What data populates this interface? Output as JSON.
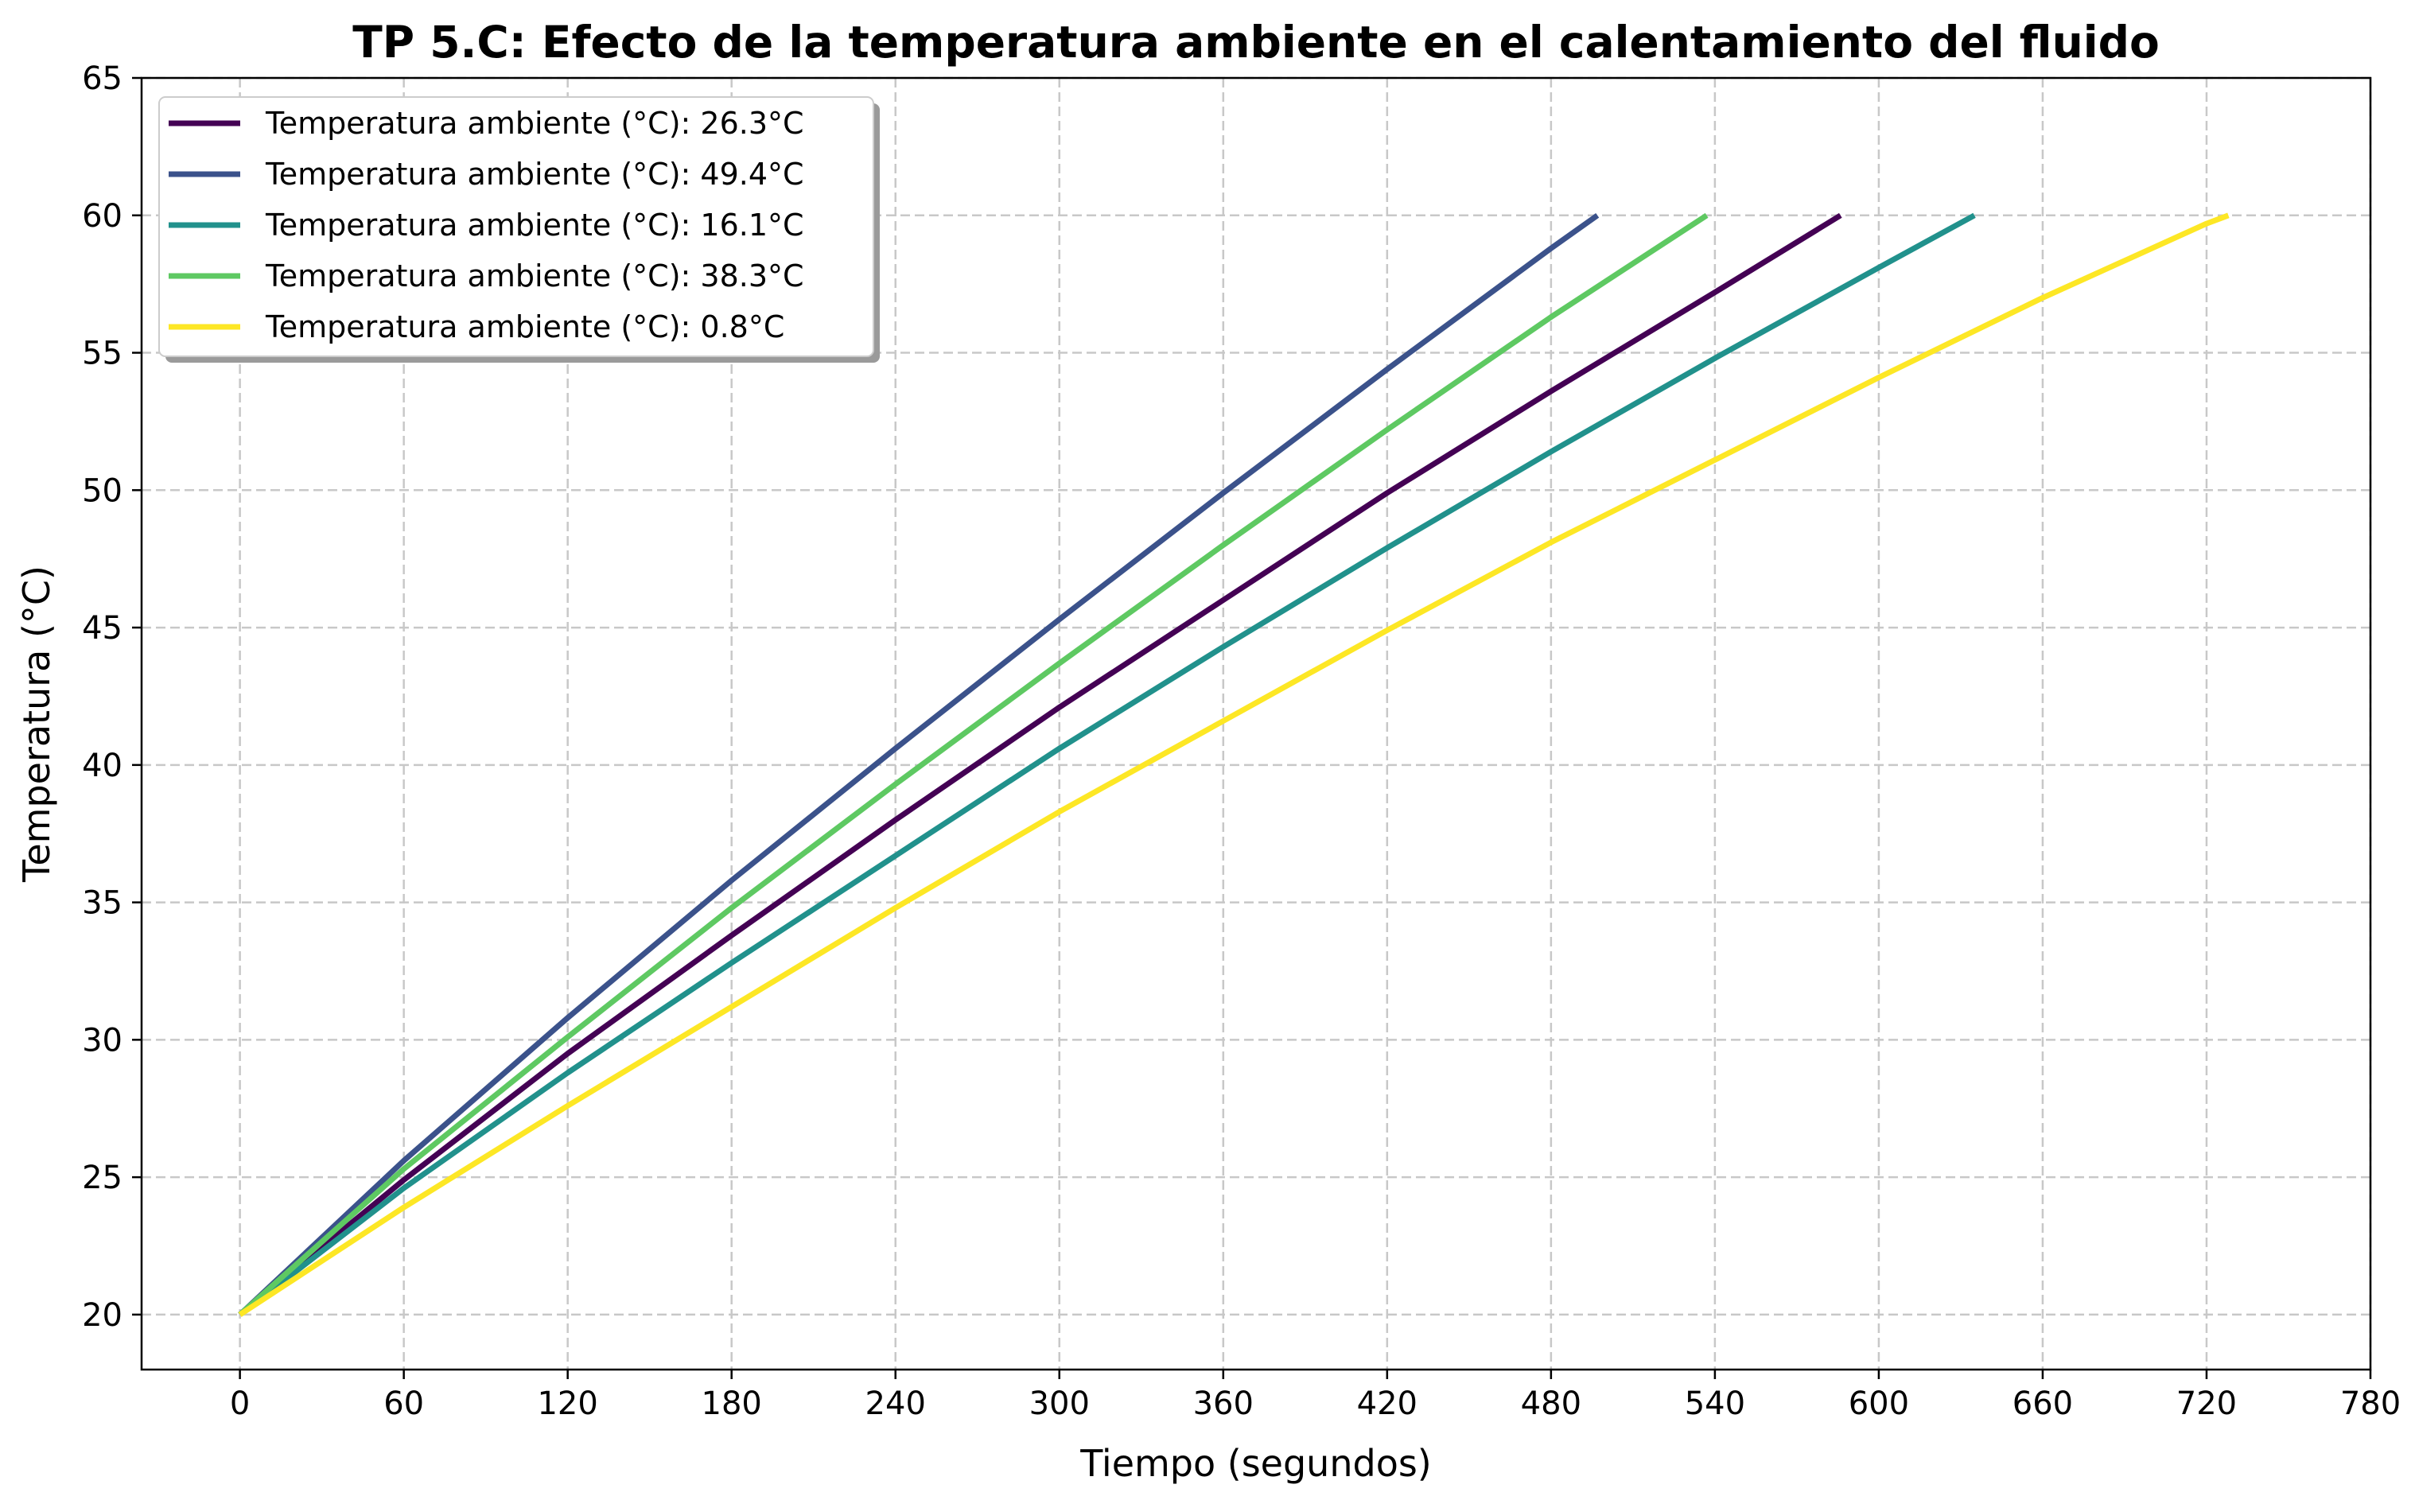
{
  "chart_data": {
    "type": "line",
    "title": "TP 5.C: Efecto de la temperatura ambiente en el calentamiento del fluido",
    "xlabel": "Tiempo (segundos)",
    "ylabel": "Temperatura (°C)",
    "xlim": [
      -36,
      780
    ],
    "ylim": [
      18,
      65
    ],
    "xticks": [
      "0",
      "60",
      "120",
      "180",
      "240",
      "300",
      "360",
      "420",
      "480",
      "540",
      "600",
      "660",
      "720",
      "780"
    ],
    "yticks": [
      "20",
      "25",
      "30",
      "35",
      "40",
      "45",
      "50",
      "55",
      "60",
      "65"
    ],
    "grid": true,
    "legend_position": "top-left",
    "series": [
      {
        "name": "Temperatura ambiente (°C): 26.3°C",
        "color": "#440154",
        "x": [
          0,
          60,
          120,
          180,
          240,
          300,
          360,
          420,
          480,
          540,
          586
        ],
        "y": [
          20,
          24.9,
          29.5,
          33.8,
          38.0,
          42.1,
          46.0,
          49.9,
          53.6,
          57.2,
          60
        ]
      },
      {
        "name": "Temperatura ambiente (°C): 49.4°C",
        "color": "#3b528b",
        "x": [
          0,
          60,
          120,
          180,
          240,
          300,
          360,
          420,
          480,
          497
        ],
        "y": [
          20,
          25.6,
          30.8,
          35.8,
          40.6,
          45.3,
          49.9,
          54.4,
          58.8,
          60
        ]
      },
      {
        "name": "Temperatura ambiente (°C): 16.1°C",
        "color": "#21918c",
        "x": [
          0,
          60,
          120,
          180,
          240,
          300,
          360,
          420,
          480,
          540,
          600,
          635
        ],
        "y": [
          20,
          24.6,
          28.8,
          32.8,
          36.7,
          40.6,
          44.3,
          47.9,
          51.4,
          54.8,
          58.1,
          60
        ]
      },
      {
        "name": "Temperatura ambiente (°C): 38.3°C",
        "color": "#5ec962",
        "x": [
          0,
          60,
          120,
          180,
          240,
          300,
          360,
          420,
          480,
          537
        ],
        "y": [
          20,
          25.3,
          30.1,
          34.8,
          39.3,
          43.7,
          48.0,
          52.2,
          56.3,
          60
        ]
      },
      {
        "name": "Temperatura ambiente (°C): 0.8°C",
        "color": "#fde725",
        "x": [
          0,
          60,
          120,
          180,
          240,
          300,
          360,
          420,
          480,
          540,
          600,
          660,
          720,
          728
        ],
        "y": [
          20,
          23.9,
          27.6,
          31.2,
          34.8,
          38.3,
          41.6,
          44.9,
          48.1,
          51.1,
          54.1,
          57.0,
          59.7,
          60
        ]
      }
    ]
  }
}
